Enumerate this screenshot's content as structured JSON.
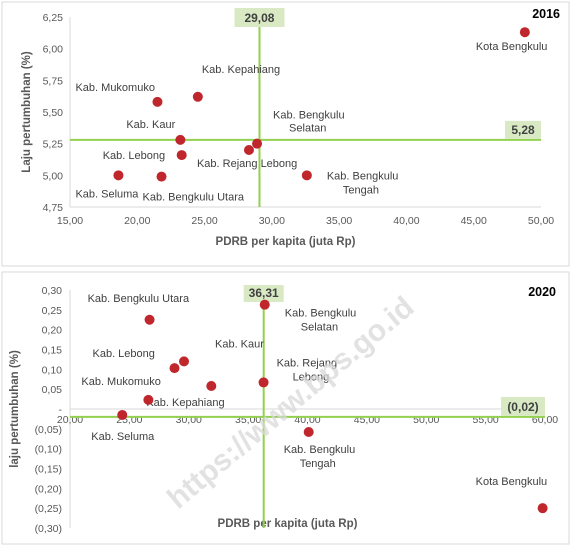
{
  "watermark": "https://www.bps.go.id",
  "colors": {
    "point": "#c0272d",
    "reference_line": "#92d050",
    "label_box": "#d8e9c4",
    "axis": "#d9d9d9"
  },
  "chart_data": [
    {
      "type": "scatter",
      "title": "2016",
      "xlabel": "PDRB per kapita (juta Rp)",
      "ylabel": "Laju pertumbuhan (%)",
      "xlim": [
        15,
        50
      ],
      "ylim": [
        4.75,
        6.25
      ],
      "xticks": [
        "15,00",
        "20,00",
        "25,00",
        "30,00",
        "35,00",
        "40,00",
        "45,00",
        "50,00"
      ],
      "yticks": [
        "4,75",
        "5,00",
        "5,25",
        "5,50",
        "5,75",
        "6,00",
        "6,25"
      ],
      "ref_x": 29.08,
      "ref_x_label": "29,08",
      "ref_y": 5.28,
      "ref_y_label": "5,28",
      "points": [
        {
          "label": "Kota Bengkulu",
          "x": 48.8,
          "y": 6.13
        },
        {
          "label": "Kab. Kepahiang",
          "x": 24.5,
          "y": 5.62
        },
        {
          "label": "Kab. Mukomuko",
          "x": 21.5,
          "y": 5.58
        },
        {
          "label": "Kab. Kaur",
          "x": 23.2,
          "y": 5.28
        },
        {
          "label": "Kab. Bengkulu Selatan",
          "x": 28.9,
          "y": 5.25
        },
        {
          "label": "Kab. Lebong",
          "x": 23.3,
          "y": 5.16
        },
        {
          "label": "Kab. Rejang Lebong",
          "x": 28.3,
          "y": 5.2
        },
        {
          "label": "Kab. Bengkulu Tengah",
          "x": 32.6,
          "y": 5.0
        },
        {
          "label": "Kab. Seluma",
          "x": 18.6,
          "y": 5.0
        },
        {
          "label": "Kab. Bengkulu Utara",
          "x": 21.8,
          "y": 4.99
        }
      ]
    },
    {
      "type": "scatter",
      "title": "2020",
      "xlabel": "PDRB per kapita (juta Rp)",
      "ylabel": "laju pertumbuhan (%)",
      "xlim": [
        20,
        60
      ],
      "ylim": [
        -0.3,
        0.3
      ],
      "xticks": [
        "20,00",
        "25,00",
        "30,00",
        "35,00",
        "40,00",
        "45,00",
        "50,00",
        "55,00",
        "60,00"
      ],
      "yticks": [
        "0,30",
        "0,25",
        "0,20",
        "0,15",
        "0,10",
        "0,05",
        "-",
        "(0,05)",
        "(0,10)",
        "(0,15)",
        "(0,20)",
        "(0,25)",
        "(0,30)"
      ],
      "ref_x": 36.31,
      "ref_x_label": "36,31",
      "ref_y": -0.02,
      "ref_y_label": "(0,02)",
      "points": [
        {
          "label": "Kab. Bengkulu Utara",
          "x": 26.7,
          "y": 0.225
        },
        {
          "label": "Kab. Bengkulu Selatan",
          "x": 36.4,
          "y": 0.263
        },
        {
          "label": "Kab. Kaur",
          "x": 29.6,
          "y": 0.12
        },
        {
          "label": "Kab. Lebong",
          "x": 28.8,
          "y": 0.103
        },
        {
          "label": "Kab. Rejang Lebong",
          "x": 36.3,
          "y": 0.067
        },
        {
          "label": "Kab. Kepahiang",
          "x": 31.9,
          "y": 0.058
        },
        {
          "label": "Kab. Mukomuko",
          "x": 26.6,
          "y": 0.023
        },
        {
          "label": "Kab. Seluma",
          "x": 24.4,
          "y": -0.015
        },
        {
          "label": "Kab. Bengkulu Tengah",
          "x": 40.1,
          "y": -0.058
        },
        {
          "label": "Kota Bengkulu",
          "x": 59.8,
          "y": -0.25
        }
      ]
    }
  ]
}
